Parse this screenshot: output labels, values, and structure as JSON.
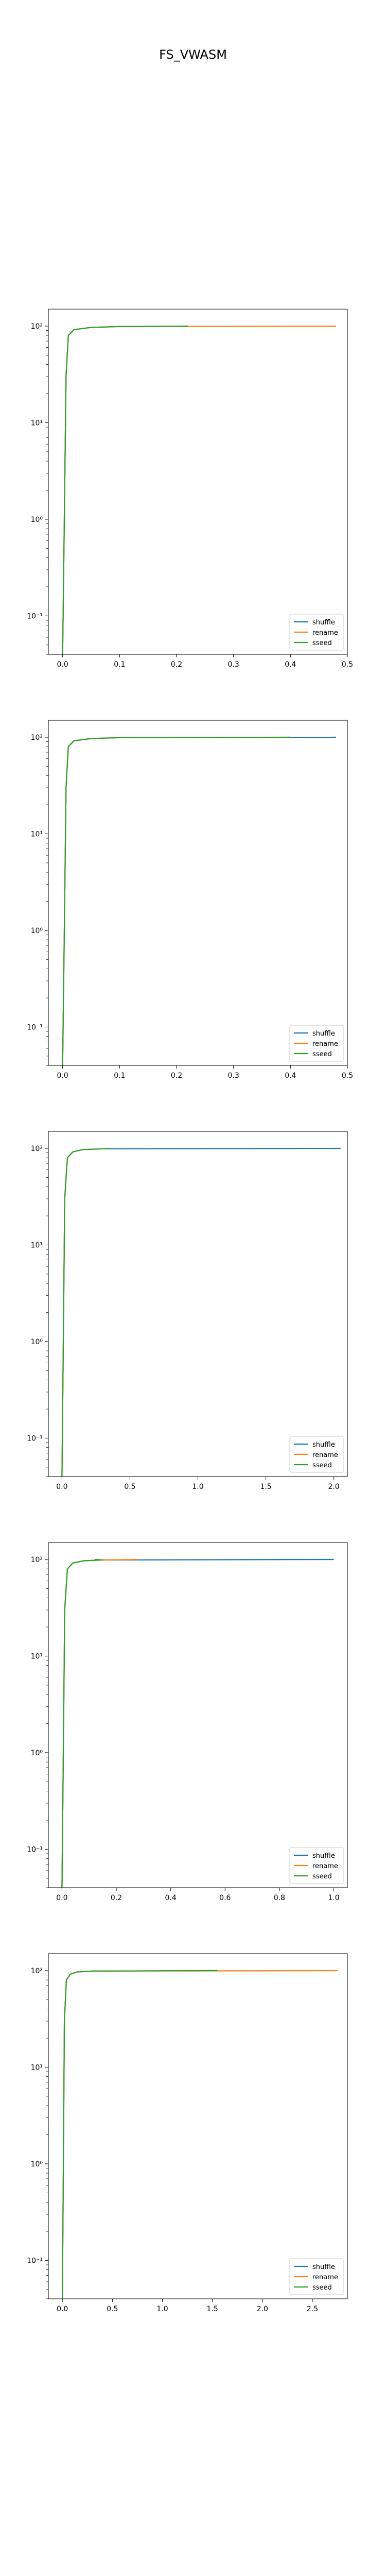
{
  "figure": {
    "title": "FS_VWASM"
  },
  "colors": {
    "shuffle": "#1f77b4",
    "rename": "#ff7f0e",
    "sseed": "#2ca02c"
  },
  "chart_data": [
    {
      "type": "line",
      "yscale": "log",
      "ylim": [
        0.04,
        150
      ],
      "xlim": [
        -0.025,
        0.5
      ],
      "xticks": [
        0.0,
        0.1,
        0.2,
        0.3,
        0.4,
        0.5
      ],
      "xtick_labels": [
        "0.0",
        "0.1",
        "0.2",
        "0.3",
        "0.4",
        "0.5"
      ],
      "yticks": [
        0.1,
        1,
        10,
        100
      ],
      "ytick_labels": [
        "10⁻¹",
        "10⁰",
        "10¹",
        "10²"
      ],
      "legend": "lower-right",
      "series": [
        {
          "name": "shuffle",
          "x": [
            0.0,
            0.003,
            0.006,
            0.01,
            0.02,
            0.05,
            0.1,
            0.22
          ],
          "y": [
            0.04,
            1,
            30,
            80,
            92,
            97,
            99,
            100
          ]
        },
        {
          "name": "rename",
          "x": [
            0.0,
            0.003,
            0.006,
            0.01,
            0.02,
            0.05,
            0.1,
            0.48
          ],
          "y": [
            0.04,
            1,
            30,
            80,
            92,
            97,
            99,
            100
          ]
        },
        {
          "name": "sseed",
          "x": [
            0.0,
            0.003,
            0.006,
            0.01,
            0.02,
            0.05,
            0.1,
            0.22
          ],
          "y": [
            0.04,
            1,
            30,
            80,
            92,
            97,
            99,
            100
          ]
        }
      ]
    },
    {
      "type": "line",
      "yscale": "log",
      "ylim": [
        0.04,
        150
      ],
      "xlim": [
        -0.025,
        0.5
      ],
      "xticks": [
        0.0,
        0.1,
        0.2,
        0.3,
        0.4,
        0.5
      ],
      "xtick_labels": [
        "0.0",
        "0.1",
        "0.2",
        "0.3",
        "0.4",
        "0.5"
      ],
      "yticks": [
        0.1,
        1,
        10,
        100
      ],
      "ytick_labels": [
        "10⁻¹",
        "10⁰",
        "10¹",
        "10²"
      ],
      "legend": "lower-right",
      "series": [
        {
          "name": "shuffle",
          "x": [
            0.0,
            0.003,
            0.006,
            0.01,
            0.02,
            0.05,
            0.1,
            0.48
          ],
          "y": [
            0.04,
            1,
            30,
            80,
            92,
            97,
            99,
            100
          ]
        },
        {
          "name": "rename",
          "x": [
            0.0,
            0.003,
            0.006,
            0.01,
            0.02,
            0.05,
            0.1,
            0.4
          ],
          "y": [
            0.04,
            1,
            30,
            80,
            92,
            97,
            99,
            100
          ]
        },
        {
          "name": "sseed",
          "x": [
            0.0,
            0.003,
            0.006,
            0.01,
            0.02,
            0.05,
            0.1,
            0.4
          ],
          "y": [
            0.04,
            1,
            30,
            80,
            92,
            97,
            99,
            100
          ]
        }
      ]
    },
    {
      "type": "line",
      "yscale": "log",
      "ylim": [
        0.04,
        150
      ],
      "xlim": [
        -0.1,
        2.1
      ],
      "xticks": [
        0.0,
        0.5,
        1.0,
        1.5,
        2.0
      ],
      "xtick_labels": [
        "0.0",
        "0.5",
        "1.0",
        "1.5",
        "2.0"
      ],
      "yticks": [
        0.1,
        1,
        10,
        100
      ],
      "ytick_labels": [
        "10⁻¹",
        "10⁰",
        "10¹",
        "10²"
      ],
      "legend": "lower-right",
      "series": [
        {
          "name": "shuffle",
          "x": [
            0.0,
            0.01,
            0.02,
            0.04,
            0.08,
            0.15,
            0.3,
            2.05
          ],
          "y": [
            0.04,
            1,
            30,
            80,
            92,
            97,
            99,
            100
          ]
        },
        {
          "name": "rename",
          "x": [
            0.0,
            0.01,
            0.02,
            0.04,
            0.08,
            0.15,
            0.3,
            0.35
          ],
          "y": [
            0.04,
            1,
            30,
            80,
            92,
            97,
            99,
            100
          ]
        },
        {
          "name": "sseed",
          "x": [
            0.0,
            0.01,
            0.02,
            0.04,
            0.08,
            0.15,
            0.3,
            0.35
          ],
          "y": [
            0.04,
            1,
            30,
            80,
            92,
            97,
            99,
            100
          ]
        }
      ]
    },
    {
      "type": "line",
      "yscale": "log",
      "ylim": [
        0.04,
        150
      ],
      "xlim": [
        -0.05,
        1.05
      ],
      "xticks": [
        0.0,
        0.2,
        0.4,
        0.6,
        0.8,
        1.0
      ],
      "xtick_labels": [
        "0.0",
        "0.2",
        "0.4",
        "0.6",
        "0.8",
        "1.0"
      ],
      "yticks": [
        0.1,
        1,
        10,
        100
      ],
      "ytick_labels": [
        "10⁻¹",
        "10⁰",
        "10¹",
        "10²"
      ],
      "legend": "lower-right",
      "series": [
        {
          "name": "shuffle",
          "x": [
            0.0,
            0.005,
            0.01,
            0.02,
            0.04,
            0.08,
            0.15,
            1.0
          ],
          "y": [
            0.04,
            1,
            30,
            80,
            92,
            97,
            99,
            100
          ]
        },
        {
          "name": "rename",
          "x": [
            0.0,
            0.005,
            0.01,
            0.02,
            0.04,
            0.08,
            0.15,
            0.28
          ],
          "y": [
            0.04,
            1,
            30,
            80,
            92,
            97,
            99,
            100
          ]
        },
        {
          "name": "sseed",
          "x": [
            0.0,
            0.005,
            0.01,
            0.02,
            0.04,
            0.08,
            0.15,
            0.12
          ],
          "y": [
            0.04,
            1,
            30,
            80,
            92,
            97,
            99,
            100
          ]
        }
      ]
    },
    {
      "type": "line",
      "yscale": "log",
      "ylim": [
        0.04,
        150
      ],
      "xlim": [
        -0.14,
        2.85
      ],
      "xticks": [
        0.0,
        0.5,
        1.0,
        1.5,
        2.0,
        2.5
      ],
      "xtick_labels": [
        "0.0",
        "0.5",
        "1.0",
        "1.5",
        "2.0",
        "2.5"
      ],
      "yticks": [
        0.1,
        1,
        10,
        100
      ],
      "ytick_labels": [
        "10⁻¹",
        "10⁰",
        "10¹",
        "10²"
      ],
      "legend": "lower-right",
      "series": [
        {
          "name": "shuffle",
          "x": [
            0.0,
            0.01,
            0.02,
            0.04,
            0.08,
            0.15,
            0.3,
            1.55
          ],
          "y": [
            0.04,
            1,
            30,
            80,
            92,
            97,
            99,
            100
          ]
        },
        {
          "name": "rename",
          "x": [
            0.0,
            0.01,
            0.02,
            0.04,
            0.08,
            0.15,
            0.3,
            2.75
          ],
          "y": [
            0.04,
            1,
            30,
            80,
            92,
            97,
            99,
            100
          ]
        },
        {
          "name": "sseed",
          "x": [
            0.0,
            0.01,
            0.02,
            0.04,
            0.08,
            0.15,
            0.3,
            1.55
          ],
          "y": [
            0.04,
            1,
            30,
            80,
            92,
            97,
            99,
            100
          ]
        }
      ]
    }
  ]
}
